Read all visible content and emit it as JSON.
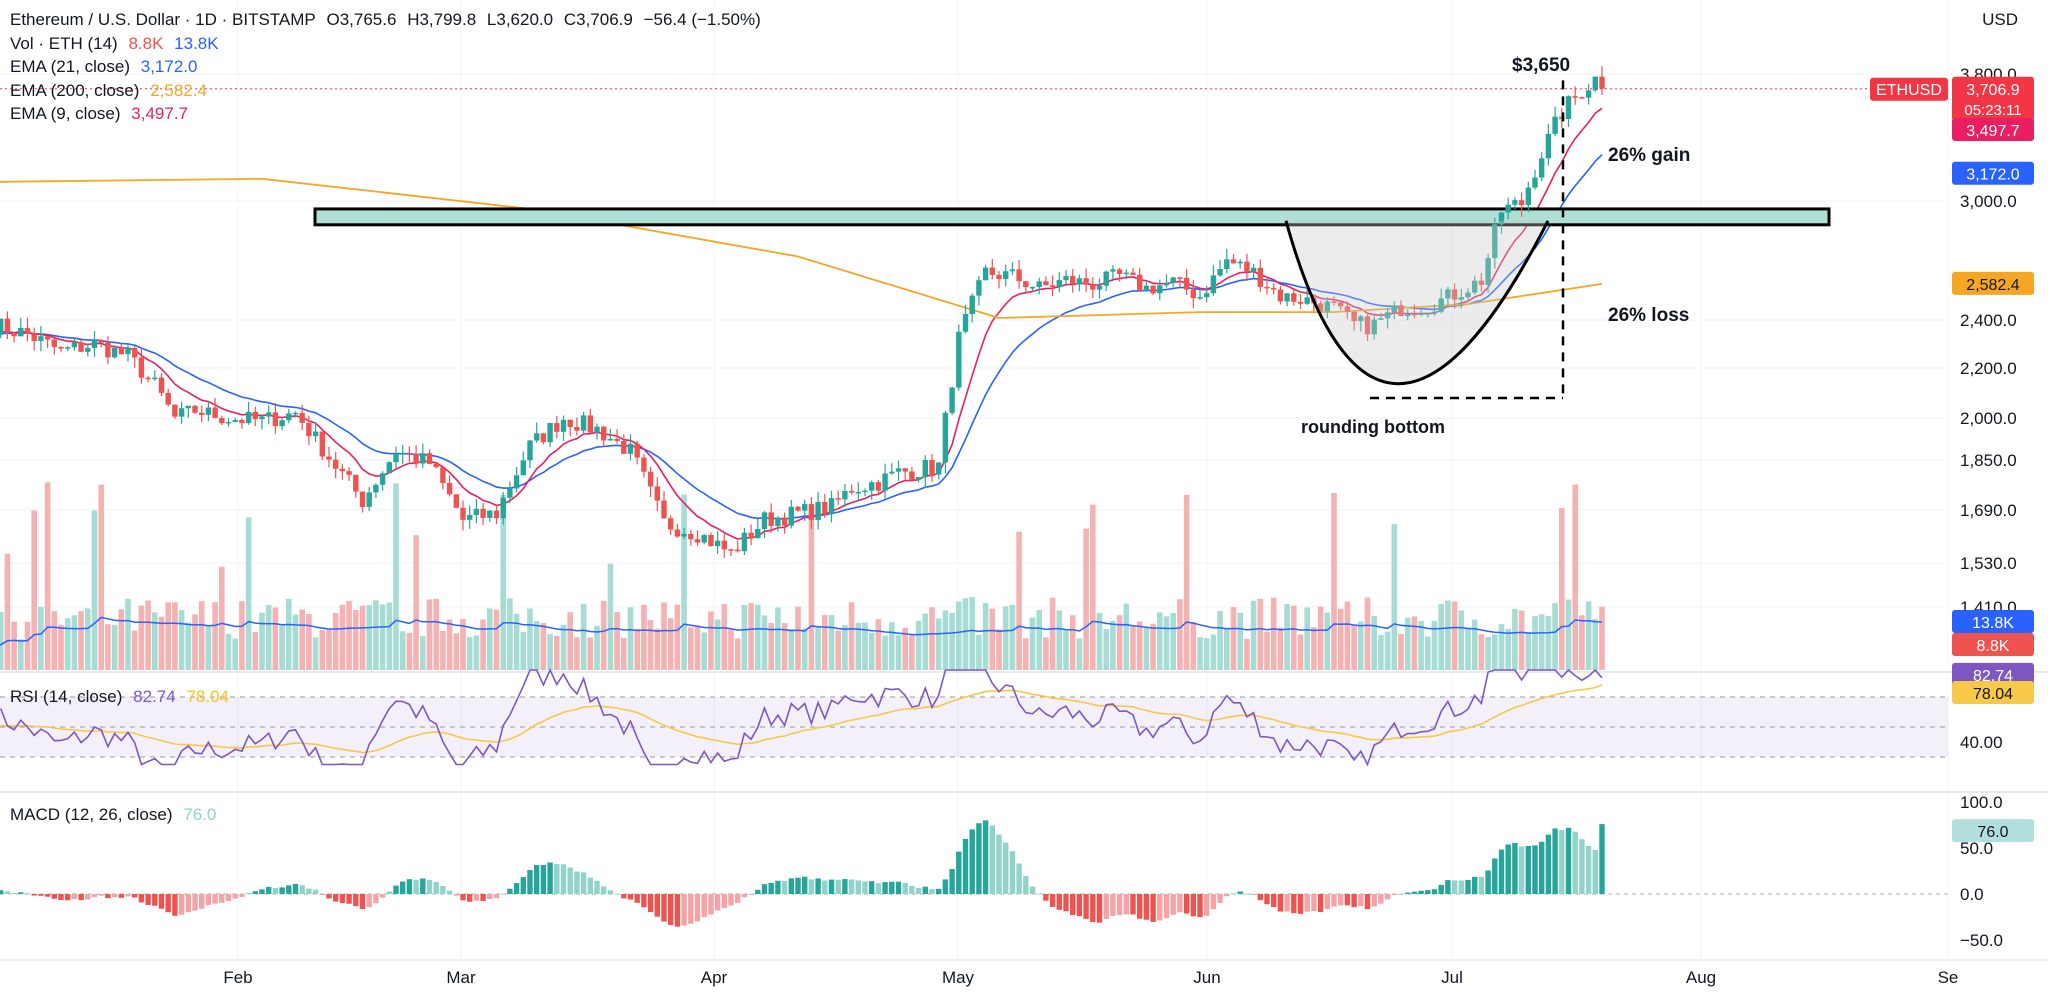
{
  "header": {
    "symbol": "Ethereum / U.S. Dollar · 1D · BITSTAMP",
    "o": "O3,765.6",
    "h": "H3,799.8",
    "l": "L3,620.0",
    "c": "C3,706.9",
    "chg": "−56.4 (−1.50%)",
    "currency": "USD"
  },
  "legend": {
    "vol_label": "Vol · ETH (14)",
    "vol_a": "8.8K",
    "vol_b": "13.8K",
    "ema21_label": "EMA (21, close)",
    "ema21_val": "3,172.0",
    "ema200_label": "EMA (200, close)",
    "ema200_val": "2,582.4",
    "ema9_label": "EMA (9, close)",
    "ema9_val": "3,497.7"
  },
  "rsi": {
    "label": "RSI (14, close)",
    "val": "82.74",
    "ma": "78.04"
  },
  "macd": {
    "label": "MACD (12, 26, close)",
    "val": "76.0"
  },
  "colors": {
    "up": "#26a69a",
    "down": "#ef5350",
    "up_light": "#8fd3c9",
    "down_light": "#f5a3a6",
    "ema21": "#2962ff",
    "ema200": "#f5a623",
    "ema9": "#e91e63",
    "rsi": "#7e57c2",
    "rsi_ma": "#f7c948",
    "zone": "#aee0d6",
    "symbol_tag": "#f23645"
  },
  "chart_data": {
    "type": "candlestick",
    "title": "Ethereum / U.S. Dollar · 1D · BITSTAMP",
    "x_ticks": [
      "Feb",
      "Mar",
      "Apr",
      "May",
      "Jun",
      "Jul",
      "Aug",
      "Se"
    ],
    "y_ticks": [
      "3,800.0",
      "3,000.0",
      "2,400.0",
      "2,200.0",
      "2,000.0",
      "1,850.0",
      "1,690.0",
      "1,530.0",
      "1,410.0"
    ],
    "y_tick_values": [
      3800,
      3000,
      2400,
      2200,
      2000,
      1850,
      1690,
      1530,
      1410
    ],
    "price_anchors": [
      {
        "day": 0,
        "price": 2380
      },
      {
        "day": 5,
        "price": 2340
      },
      {
        "day": 10,
        "price": 2270
      },
      {
        "day": 15,
        "price": 2300
      },
      {
        "day": 20,
        "price": 2250
      },
      {
        "day": 24,
        "price": 2130
      },
      {
        "day": 27,
        "price": 2000
      },
      {
        "day": 30,
        "price": 2030
      },
      {
        "day": 35,
        "price": 2000
      },
      {
        "day": 40,
        "price": 1990
      },
      {
        "day": 45,
        "price": 2020
      },
      {
        "day": 50,
        "price": 1860
      },
      {
        "day": 55,
        "price": 1720
      },
      {
        "day": 60,
        "price": 1880
      },
      {
        "day": 65,
        "price": 1840
      },
      {
        "day": 70,
        "price": 1660
      },
      {
        "day": 75,
        "price": 1680
      },
      {
        "day": 80,
        "price": 1900
      },
      {
        "day": 85,
        "price": 2000
      },
      {
        "day": 90,
        "price": 1960
      },
      {
        "day": 95,
        "price": 1880
      },
      {
        "day": 100,
        "price": 1650
      },
      {
        "day": 105,
        "price": 1620
      },
      {
        "day": 110,
        "price": 1560
      },
      {
        "day": 115,
        "price": 1660
      },
      {
        "day": 120,
        "price": 1680
      },
      {
        "day": 125,
        "price": 1700
      },
      {
        "day": 128,
        "price": 1760
      },
      {
        "day": 132,
        "price": 1780
      },
      {
        "day": 135,
        "price": 1810
      },
      {
        "day": 138,
        "price": 1820
      },
      {
        "day": 141,
        "price": 1830
      },
      {
        "day": 144,
        "price": 2320
      },
      {
        "day": 148,
        "price": 2640
      },
      {
        "day": 152,
        "price": 2620
      },
      {
        "day": 156,
        "price": 2560
      },
      {
        "day": 160,
        "price": 2600
      },
      {
        "day": 164,
        "price": 2580
      },
      {
        "day": 168,
        "price": 2620
      },
      {
        "day": 172,
        "price": 2560
      },
      {
        "day": 176,
        "price": 2590
      },
      {
        "day": 180,
        "price": 2520
      },
      {
        "day": 184,
        "price": 2700
      },
      {
        "day": 188,
        "price": 2640
      },
      {
        "day": 192,
        "price": 2520
      },
      {
        "day": 196,
        "price": 2500
      },
      {
        "day": 200,
        "price": 2460
      },
      {
        "day": 203,
        "price": 2380
      },
      {
        "day": 206,
        "price": 2380
      },
      {
        "day": 210,
        "price": 2460
      },
      {
        "day": 214,
        "price": 2470
      },
      {
        "day": 218,
        "price": 2530
      },
      {
        "day": 222,
        "price": 2600
      },
      {
        "day": 225,
        "price": 2950
      },
      {
        "day": 228,
        "price": 2990
      },
      {
        "day": 231,
        "price": 3300
      },
      {
        "day": 234,
        "price": 3560
      },
      {
        "day": 237,
        "price": 3700
      },
      {
        "day": 239,
        "price": 3770
      },
      {
        "day": 240,
        "price": 3707
      }
    ],
    "ema200_anchors": [
      {
        "day": 0,
        "price": 3120
      },
      {
        "day": 40,
        "price": 3140
      },
      {
        "day": 80,
        "price": 2960
      },
      {
        "day": 120,
        "price": 2720
      },
      {
        "day": 150,
        "price": 2410
      },
      {
        "day": 180,
        "price": 2440
      },
      {
        "day": 200,
        "price": 2440
      },
      {
        "day": 220,
        "price": 2480
      },
      {
        "day": 240,
        "price": 2582
      }
    ],
    "annotations": {
      "resistance_zone": [
        2880,
        2960
      ],
      "target_label": "$3,650",
      "gain_label": "26% gain",
      "loss_label": "26% loss",
      "pattern_label": "rounding bottom",
      "rounding_bottom_low": 2080
    },
    "price_tags": {
      "symbol": "ETHUSD",
      "last": "3,706.9",
      "countdown": "05:23:11",
      "ema9": "3,497.7",
      "ema21": "3,172.0",
      "ema200": "2,582.4",
      "vol_b": "13.8K",
      "vol_a": "8.8K"
    },
    "rsi_ticks": [
      "40.00"
    ],
    "rsi_tick_values": [
      40
    ],
    "rsi_bands": [
      30,
      50,
      70
    ],
    "rsi_last": 82.74,
    "rsi_ma_last": 78.04,
    "macd_ticks": [
      "100.0",
      "50.0",
      "0.0",
      "−50.0"
    ],
    "macd_tick_values": [
      100,
      50,
      0,
      -50
    ],
    "macd_last": 76.0
  }
}
